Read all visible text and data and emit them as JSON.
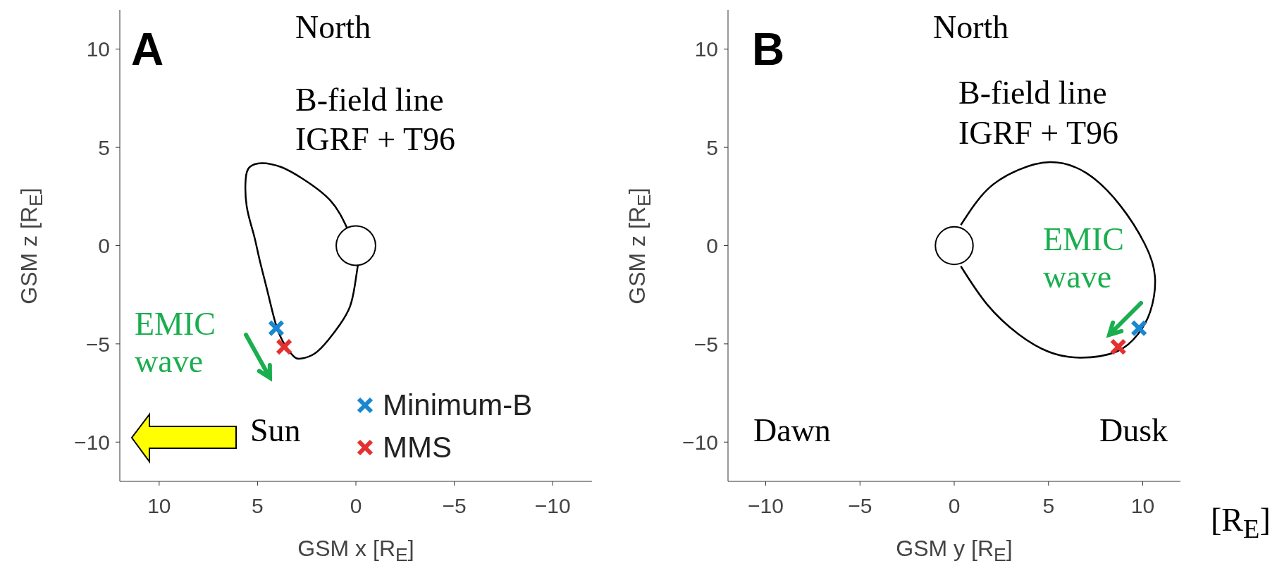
{
  "chart_data": [
    {
      "type": "line",
      "title": "A",
      "xlabel": "GSM x [R$_{E}$]",
      "ylabel": "GSM z [R$_{E}$]",
      "xlim": [
        12,
        -12
      ],
      "ylim": [
        -12,
        12
      ],
      "xticks": [
        10,
        5,
        0,
        -5,
        -10
      ],
      "yticks": [
        -10,
        -5,
        0,
        5,
        10
      ],
      "grid": false,
      "legend": "bottom right",
      "annotations": [
        "North",
        "B-field line",
        "IGRF + T96",
        "EMIC wave",
        "Sun"
      ],
      "series": [
        {
          "marker": "none",
          "color": "#000000",
          "x": [
            0.45,
            1.3,
            2.7,
            3.8,
            4.8,
            5.4,
            5.6,
            5.55,
            5.2,
            4.9,
            4.5,
            4.1,
            3.7,
            3.2,
            2.8,
            2.1,
            1.4,
            0.8,
            0.3,
            0.05,
            -0.1
          ],
          "values": [
            0.9,
            2.3,
            3.4,
            4.0,
            4.2,
            4.0,
            3.4,
            2.0,
            0.6,
            -0.7,
            -2.3,
            -3.9,
            -4.9,
            -5.6,
            -5.75,
            -5.5,
            -4.8,
            -4.0,
            -3.1,
            -2.0,
            -1.0
          ]
        },
        {
          "type": "scatter",
          "marker": "cross",
          "name": "Minimum-B",
          "color": "#1a87d0",
          "x": [
            4.05
          ],
          "values": [
            -4.2
          ]
        },
        {
          "type": "scatter",
          "marker": "cross",
          "name": "MMS",
          "color": "#e53030",
          "x": [
            3.65
          ],
          "values": [
            -5.15
          ]
        }
      ]
    },
    {
      "type": "line",
      "title": "B",
      "xlabel": "GSM y [R$_{E}$]",
      "ylabel": "GSM z [R$_{E}$]",
      "xlim": [
        -12,
        12
      ],
      "ylim": [
        -12,
        12
      ],
      "xticks": [
        -10,
        -5,
        0,
        5,
        10
      ],
      "yticks": [
        -10,
        -5,
        0,
        5,
        10
      ],
      "grid": false,
      "annotations": [
        "North",
        "B-field line",
        "IGRF + T96",
        "EMIC wave",
        "Dawn",
        "Dusk",
        "[R$_{E}$]"
      ],
      "series": [
        {
          "marker": "none",
          "color": "#000000",
          "x": [
            0.35,
            1.75,
            3.4,
            5.1,
            7.0,
            8.8,
            10.1,
            10.65,
            10.4,
            9.75,
            8.6,
            6.65,
            5.0,
            3.4,
            1.75,
            0.35
          ],
          "values": [
            1.05,
            2.85,
            3.85,
            4.25,
            3.7,
            2.05,
            0.1,
            -1.6,
            -3.35,
            -4.5,
            -5.4,
            -5.7,
            -5.4,
            -4.5,
            -3.0,
            -1.05
          ]
        },
        {
          "type": "scatter",
          "marker": "cross",
          "color": "#1a87d0",
          "x": [
            9.8
          ],
          "values": [
            -4.2
          ]
        },
        {
          "type": "scatter",
          "marker": "cross",
          "color": "#e53030",
          "x": [
            8.7
          ],
          "values": [
            -5.15
          ]
        }
      ]
    }
  ]
}
